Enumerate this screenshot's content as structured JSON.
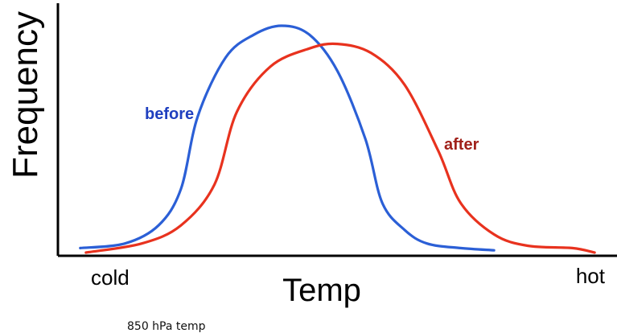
{
  "chart_data": {
    "type": "line",
    "title": "",
    "xlabel": "Temp",
    "ylabel": "Frequency",
    "x_start_label": "cold",
    "x_end_label": "hot",
    "caption": "850 hPa temp",
    "grid": false,
    "legend": "inline",
    "series": [
      {
        "name": "before",
        "color": "#2b5fd6",
        "label_color": "#1f3fbf",
        "points": [
          [
            0.04,
            0.02
          ],
          [
            0.12,
            0.04
          ],
          [
            0.18,
            0.12
          ],
          [
            0.22,
            0.28
          ],
          [
            0.25,
            0.6
          ],
          [
            0.3,
            0.86
          ],
          [
            0.35,
            0.96
          ],
          [
            0.4,
            1.0
          ],
          [
            0.45,
            0.96
          ],
          [
            0.5,
            0.8
          ],
          [
            0.55,
            0.5
          ],
          [
            0.58,
            0.22
          ],
          [
            0.62,
            0.1
          ],
          [
            0.66,
            0.04
          ],
          [
            0.72,
            0.02
          ],
          [
            0.78,
            0.01
          ]
        ]
      },
      {
        "name": "after",
        "color": "#e8321e",
        "label_color": "#a0211a",
        "points": [
          [
            0.05,
            0.0
          ],
          [
            0.15,
            0.04
          ],
          [
            0.22,
            0.12
          ],
          [
            0.28,
            0.3
          ],
          [
            0.32,
            0.62
          ],
          [
            0.38,
            0.82
          ],
          [
            0.45,
            0.9
          ],
          [
            0.5,
            0.92
          ],
          [
            0.56,
            0.88
          ],
          [
            0.62,
            0.74
          ],
          [
            0.68,
            0.45
          ],
          [
            0.72,
            0.22
          ],
          [
            0.78,
            0.08
          ],
          [
            0.84,
            0.03
          ],
          [
            0.92,
            0.02
          ],
          [
            0.96,
            0.0
          ]
        ]
      }
    ]
  }
}
